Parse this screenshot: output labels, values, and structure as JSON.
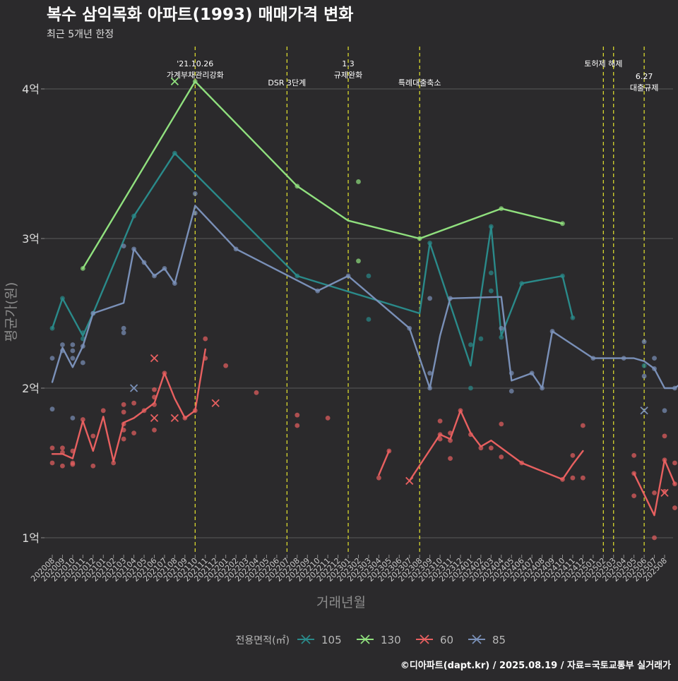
{
  "chart_data": {
    "type": "line",
    "title": "복수 삼익목화 아파트(1993) 매매가격 변화",
    "subtitle": "최근 5개년 한정",
    "xlabel": "거래년월",
    "ylabel": "평균가(원)",
    "caption": "©디아파트(dapt.kr) / 2025.08.19 / 자료=국토교통부 실거래가",
    "legend_title": "전용면적(㎡)",
    "legend_position": "bottom",
    "grid": true,
    "y_range": [
      0.85,
      4.2
    ],
    "y_ticks": [
      {
        "v": 1,
        "label": "1억"
      },
      {
        "v": 2,
        "label": "2억"
      },
      {
        "v": 3,
        "label": "3억"
      },
      {
        "v": 4,
        "label": "4억"
      }
    ],
    "x_ticks": [
      "202008",
      "202009",
      "202010",
      "202011",
      "202012",
      "202101",
      "202102",
      "202103",
      "202104",
      "202105",
      "202106",
      "202107",
      "202108",
      "202109",
      "202110",
      "202111",
      "202112",
      "202201",
      "202202",
      "202203",
      "202204",
      "202205",
      "202206",
      "202207",
      "202208",
      "202209",
      "202210",
      "202211",
      "202212",
      "202301",
      "202302",
      "202303",
      "202304",
      "202305",
      "202306",
      "202307",
      "202308",
      "202309",
      "202310",
      "202311",
      "202312",
      "202401",
      "202402",
      "202403",
      "202404",
      "202405",
      "202406",
      "202407",
      "202408",
      "202409",
      "202410",
      "202411",
      "202412",
      "202501",
      "202502",
      "202503",
      "202504",
      "202505",
      "202506",
      "202507",
      "202508"
    ],
    "events": [
      {
        "x": "202110",
        "lines": [
          "'21.10.26",
          "가계부채관리강화"
        ],
        "row": 1
      },
      {
        "x": "202207",
        "lines": [
          "DSR 3단계"
        ],
        "row": 2
      },
      {
        "x": "202301",
        "lines": [
          "1.3",
          "규제완화"
        ],
        "row": 1
      },
      {
        "x": "202308",
        "lines": [
          "특례대출축소"
        ],
        "row": 2
      },
      {
        "x": "202502",
        "lines": [
          "토허제 해제"
        ],
        "row": 1
      },
      {
        "x": "202503",
        "lines": [],
        "row": 1
      },
      {
        "x": "202506",
        "lines": [
          "6.27",
          "대출규제"
        ],
        "row": 1.5
      }
    ],
    "series": [
      {
        "name": "105",
        "color": "#2a8a8a",
        "line": [
          [
            0,
            2.4
          ],
          [
            1,
            2.6
          ],
          [
            3,
            2.35
          ],
          [
            4,
            2.5
          ],
          [
            8,
            3.15
          ],
          [
            12,
            3.57
          ],
          [
            24,
            2.75
          ],
          [
            36,
            2.5
          ],
          [
            37,
            2.97
          ],
          [
            41,
            2.15
          ],
          [
            43,
            3.08
          ],
          [
            44,
            2.35
          ],
          [
            46,
            2.7
          ],
          [
            50,
            2.75
          ],
          [
            51,
            2.47
          ]
        ],
        "points": [
          [
            0,
            2.4
          ],
          [
            1,
            2.6
          ],
          [
            3,
            2.37
          ],
          [
            3,
            2.33
          ],
          [
            4,
            2.5
          ],
          [
            8,
            3.15
          ],
          [
            12,
            3.57
          ],
          [
            24,
            2.75
          ],
          [
            31,
            2.75
          ],
          [
            31,
            2.46
          ],
          [
            37,
            2.97
          ],
          [
            41,
            2.29
          ],
          [
            41,
            2.0
          ],
          [
            42,
            2.33
          ],
          [
            43,
            3.08
          ],
          [
            43,
            2.77
          ],
          [
            43,
            2.65
          ],
          [
            44,
            2.34
          ],
          [
            46,
            2.7
          ],
          [
            50,
            2.75
          ],
          [
            51,
            2.47
          ],
          [
            58,
            2.15
          ]
        ],
        "crosses": []
      },
      {
        "name": "130",
        "color": "#90e07e",
        "line": [
          [
            3,
            2.8
          ],
          [
            14,
            4.05
          ],
          [
            24,
            3.35
          ],
          [
            29,
            3.12
          ],
          [
            36,
            3.0
          ],
          [
            44,
            3.2
          ],
          [
            50,
            3.1
          ]
        ],
        "points": [
          [
            3,
            2.8
          ],
          [
            14,
            4.05
          ],
          [
            24,
            3.35
          ],
          [
            30,
            3.38
          ],
          [
            30,
            2.85
          ],
          [
            36,
            3.0
          ],
          [
            44,
            3.2
          ],
          [
            50,
            3.1
          ]
        ],
        "crosses": [
          [
            12,
            4.05
          ]
        ]
      },
      {
        "name": "60",
        "color": "#e86060",
        "line": [
          [
            0,
            1.56
          ],
          [
            1,
            1.56
          ],
          [
            2,
            1.53
          ],
          [
            3,
            1.78
          ],
          [
            4,
            1.58
          ],
          [
            5,
            1.81
          ],
          [
            6,
            1.51
          ],
          [
            7,
            1.77
          ],
          [
            8,
            1.8
          ],
          [
            9,
            1.85
          ],
          [
            10,
            1.9
          ],
          [
            11,
            2.1
          ],
          [
            12,
            1.93
          ],
          [
            13,
            1.8
          ],
          [
            14,
            1.85
          ],
          [
            15,
            2.26
          ],
          null,
          [
            32,
            1.42
          ],
          [
            33,
            1.58
          ],
          null,
          [
            35,
            1.38
          ],
          [
            38,
            1.69
          ],
          [
            39,
            1.66
          ],
          [
            40,
            1.85
          ],
          [
            41,
            1.7
          ],
          [
            42,
            1.61
          ],
          [
            43,
            1.65
          ],
          [
            46,
            1.5
          ],
          [
            50,
            1.39
          ],
          [
            51,
            1.49
          ],
          [
            52,
            1.58
          ],
          null,
          [
            57,
            1.43
          ],
          [
            59,
            1.15
          ],
          [
            60,
            1.52
          ],
          [
            61,
            1.36
          ]
        ],
        "points": [
          [
            0,
            1.6
          ],
          [
            0,
            1.5
          ],
          [
            1,
            1.6
          ],
          [
            1,
            1.57
          ],
          [
            1,
            1.48
          ],
          [
            2,
            1.58
          ],
          [
            2,
            1.5
          ],
          [
            2,
            1.49
          ],
          [
            3,
            1.79
          ],
          [
            4,
            1.68
          ],
          [
            4,
            1.48
          ],
          [
            5,
            1.85
          ],
          [
            6,
            1.5
          ],
          [
            7,
            1.89
          ],
          [
            7,
            1.84
          ],
          [
            7,
            1.76
          ],
          [
            7,
            1.72
          ],
          [
            7,
            1.66
          ],
          [
            8,
            1.9
          ],
          [
            8,
            1.7
          ],
          [
            9,
            1.85
          ],
          [
            10,
            1.99
          ],
          [
            10,
            1.94
          ],
          [
            10,
            1.89
          ],
          [
            10,
            1.72
          ],
          [
            11,
            2.1
          ],
          [
            13,
            1.8
          ],
          [
            14,
            1.85
          ],
          [
            15,
            2.33
          ],
          [
            15,
            2.2
          ],
          [
            17,
            2.15
          ],
          [
            20,
            1.97
          ],
          [
            24,
            1.82
          ],
          [
            24,
            1.75
          ],
          [
            27,
            1.8
          ],
          [
            32,
            1.4
          ],
          [
            33,
            1.58
          ],
          [
            38,
            1.78
          ],
          [
            38,
            1.69
          ],
          [
            38,
            1.66
          ],
          [
            39,
            1.7
          ],
          [
            39,
            1.65
          ],
          [
            39,
            1.53
          ],
          [
            40,
            1.85
          ],
          [
            41,
            1.69
          ],
          [
            42,
            1.6
          ],
          [
            43,
            1.6
          ],
          [
            44,
            1.76
          ],
          [
            44,
            1.54
          ],
          [
            46,
            1.5
          ],
          [
            50,
            1.39
          ],
          [
            51,
            1.55
          ],
          [
            51,
            1.4
          ],
          [
            52,
            1.75
          ],
          [
            52,
            1.4
          ],
          [
            57,
            1.55
          ],
          [
            57,
            1.43
          ],
          [
            57,
            1.28
          ],
          [
            59,
            1.3
          ],
          [
            59,
            1.0
          ],
          [
            60,
            1.68
          ],
          [
            60,
            1.52
          ],
          [
            60,
            1.31
          ],
          [
            61,
            1.5
          ],
          [
            61,
            1.36
          ],
          [
            61,
            1.2
          ]
        ],
        "crosses": [
          [
            10,
            2.2
          ],
          [
            10,
            1.8
          ],
          [
            12,
            1.8
          ],
          [
            16,
            1.9
          ],
          [
            35,
            1.38
          ],
          [
            60,
            1.3
          ]
        ]
      },
      {
        "name": "85",
        "color": "#7a90b8",
        "line": [
          [
            0,
            2.04
          ],
          [
            1,
            2.27
          ],
          [
            2,
            2.14
          ],
          [
            3,
            2.28
          ],
          [
            4,
            2.5
          ],
          [
            7,
            2.57
          ],
          [
            8,
            2.93
          ],
          [
            9,
            2.84
          ],
          [
            10,
            2.75
          ],
          [
            11,
            2.8
          ],
          [
            12,
            2.7
          ],
          [
            14,
            3.22
          ],
          [
            18,
            2.93
          ],
          [
            26,
            2.65
          ],
          [
            29,
            2.75
          ],
          [
            35,
            2.4
          ],
          [
            37,
            2.0
          ],
          [
            38,
            2.35
          ],
          [
            39,
            2.6
          ],
          [
            44,
            2.61
          ],
          [
            45,
            2.05
          ],
          [
            47,
            2.1
          ],
          [
            48,
            2.0
          ],
          [
            49,
            2.38
          ],
          [
            53,
            2.2
          ],
          [
            56,
            2.2
          ],
          [
            57,
            2.2
          ],
          [
            58,
            2.18
          ],
          [
            59,
            2.13
          ],
          [
            60,
            2.0
          ],
          [
            61,
            2.0
          ],
          [
            62,
            2.05
          ]
        ],
        "points": [
          [
            0,
            2.2
          ],
          [
            0,
            1.86
          ],
          [
            1,
            2.29
          ],
          [
            1,
            2.25
          ],
          [
            2,
            2.29
          ],
          [
            2,
            2.25
          ],
          [
            2,
            2.2
          ],
          [
            2,
            1.8
          ],
          [
            3,
            2.17
          ],
          [
            3,
            2.28
          ],
          [
            4,
            2.5
          ],
          [
            7,
            2.95
          ],
          [
            7,
            2.4
          ],
          [
            7,
            2.37
          ],
          [
            8,
            2.93
          ],
          [
            9,
            2.84
          ],
          [
            10,
            2.75
          ],
          [
            11,
            2.8
          ],
          [
            12,
            2.7
          ],
          [
            14,
            3.3
          ],
          [
            14,
            3.17
          ],
          [
            18,
            2.93
          ],
          [
            26,
            2.65
          ],
          [
            29,
            2.75
          ],
          [
            35,
            2.4
          ],
          [
            37,
            2.6
          ],
          [
            37,
            2.1
          ],
          [
            37,
            2.0
          ],
          [
            39,
            2.6
          ],
          [
            44,
            2.4
          ],
          [
            45,
            2.1
          ],
          [
            45,
            1.98
          ],
          [
            47,
            2.1
          ],
          [
            48,
            2.0
          ],
          [
            49,
            2.38
          ],
          [
            53,
            2.2
          ],
          [
            56,
            2.2
          ],
          [
            58,
            2.31
          ],
          [
            58,
            2.08
          ],
          [
            59,
            2.2
          ],
          [
            59,
            2.13
          ],
          [
            60,
            1.85
          ],
          [
            61,
            2.0
          ],
          [
            62,
            2.1
          ],
          [
            62,
            2.05
          ]
        ],
        "crosses": [
          [
            8,
            2.0
          ],
          [
            58,
            1.85
          ]
        ]
      }
    ]
  }
}
